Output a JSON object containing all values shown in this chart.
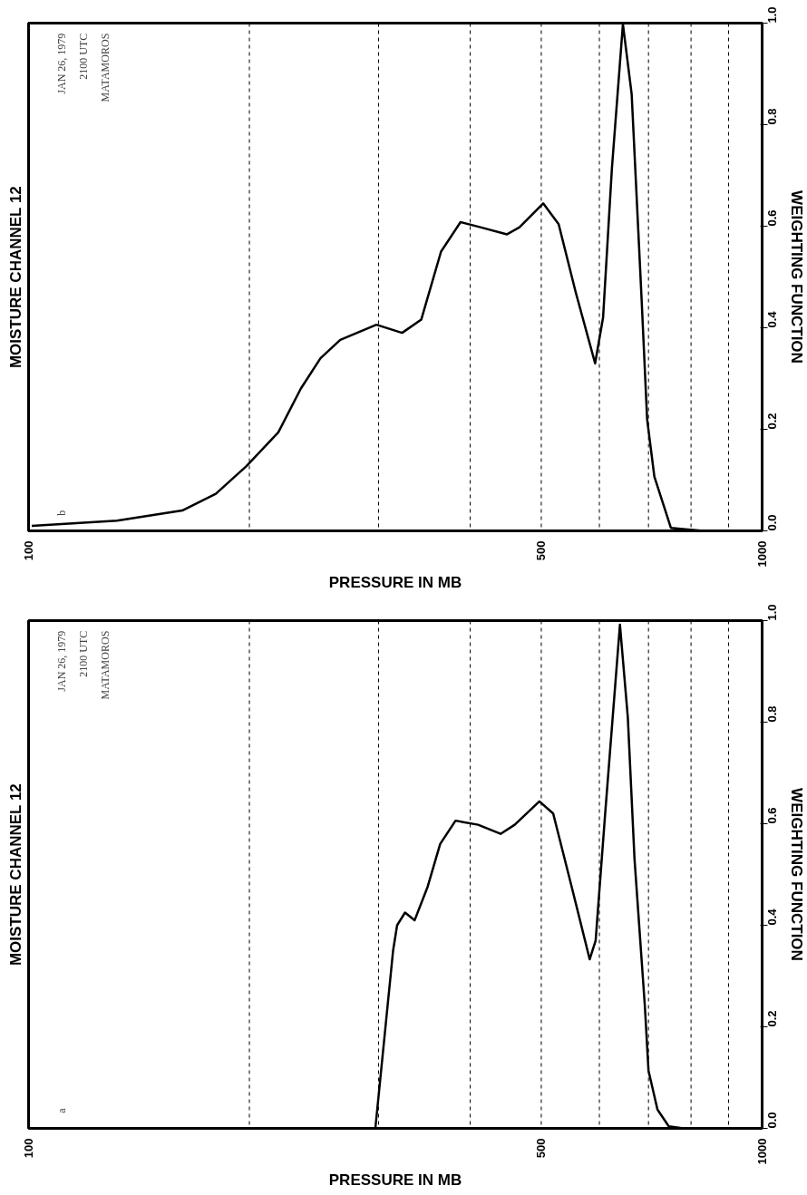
{
  "chart_data": [
    {
      "type": "line",
      "title": "MOISTURE CHANNEL 12",
      "xlabel": "PRESSURE IN MB",
      "ylabel": "WEIGHTING FUNCTION",
      "annotations": [
        "JAN 26, 1979",
        "2100 UTC",
        "MATAMOROS",
        "b"
      ],
      "log": "x",
      "xlim": [
        100,
        1000
      ],
      "xticks": [
        100,
        500,
        1000
      ],
      "ylim": [
        0,
        1
      ],
      "yticks": [
        {
          "value": 0,
          "label": "0.0"
        },
        {
          "value": 0.2,
          "label": "0.2"
        },
        {
          "value": 0.4,
          "label": "0.4"
        },
        {
          "value": 0.6,
          "label": "0.6"
        },
        {
          "value": 0.8,
          "label": "0.8"
        },
        {
          "value": 1,
          "label": "1.0"
        }
      ],
      "grid": false,
      "marker": "none",
      "line_style": "solid",
      "ref_lines": [
        {
          "axis": "x",
          "value": 200,
          "line_style": "dashed"
        },
        {
          "axis": "x",
          "value": 300,
          "line_style": "dashed"
        },
        {
          "axis": "x",
          "value": 400,
          "line_style": "dashed"
        },
        {
          "axis": "x",
          "value": 500,
          "line_style": "dashed"
        },
        {
          "axis": "x",
          "value": 600,
          "line_style": "dashed"
        },
        {
          "axis": "x",
          "value": 700,
          "line_style": "dashed"
        },
        {
          "axis": "x",
          "value": 800,
          "line_style": "dashed"
        },
        {
          "axis": "x",
          "value": 900,
          "line_style": "dashed"
        }
      ],
      "series": [
        {
          "color": "#000000",
          "x": [
            101,
            132,
            162,
            180,
            198,
            219,
            235,
            250,
            266,
            298,
            323,
            343,
            365,
            388,
            413,
            449,
            467,
            503,
            528,
            557,
            592,
            607,
            624,
            646,
            664,
            685,
            697,
            713,
            751,
            831,
            1000
          ],
          "values": [
            0.01,
            0.02,
            0.04,
            0.073,
            0.127,
            0.194,
            0.28,
            0.34,
            0.376,
            0.406,
            0.39,
            0.416,
            0.55,
            0.608,
            0.598,
            0.584,
            0.598,
            0.645,
            0.604,
            0.47,
            0.33,
            0.42,
            0.713,
            0.998,
            0.86,
            0.457,
            0.22,
            0.107,
            0.006,
            0,
            0
          ]
        }
      ]
    },
    {
      "type": "line",
      "title": "MOISTURE CHANNEL 12",
      "xlabel": "PRESSURE IN MB",
      "ylabel": "WEIGHTING FUNCTION",
      "annotations": [
        "JAN 26, 1979",
        "2100 UTC",
        "MATAMOROS",
        "a"
      ],
      "log": "x",
      "xlim": [
        100,
        1000
      ],
      "xticks": [
        100,
        500,
        1000
      ],
      "ylim": [
        0,
        1
      ],
      "yticks": [
        {
          "value": 0,
          "label": "0.0"
        },
        {
          "value": 0.2,
          "label": "0.2"
        },
        {
          "value": 0.4,
          "label": "0.4"
        },
        {
          "value": 0.6,
          "label": "0.6"
        },
        {
          "value": 0.8,
          "label": "0.8"
        },
        {
          "value": 1,
          "label": "1.0"
        }
      ],
      "grid": false,
      "marker": "none",
      "line_style": "solid",
      "ref_lines": [
        {
          "axis": "x",
          "value": 200,
          "line_style": "dashed"
        },
        {
          "axis": "x",
          "value": 300,
          "line_style": "dashed"
        },
        {
          "axis": "x",
          "value": 400,
          "line_style": "dashed"
        },
        {
          "axis": "x",
          "value": 500,
          "line_style": "dashed"
        },
        {
          "axis": "x",
          "value": 600,
          "line_style": "dashed"
        },
        {
          "axis": "x",
          "value": 700,
          "line_style": "dashed"
        },
        {
          "axis": "x",
          "value": 800,
          "line_style": "dashed"
        },
        {
          "axis": "x",
          "value": 900,
          "line_style": "dashed"
        }
      ],
      "series": [
        {
          "color": "#000000",
          "x": [
            100,
            297,
            314,
            318,
            326,
            336,
            350,
            364,
            382,
            410,
            440,
            460,
            497,
            519,
            550,
            582,
            593,
            611,
            640,
            656,
            670,
            692,
            700,
            720,
            746,
            781,
            1000
          ],
          "values": [
            0,
            0,
            0.35,
            0.4,
            0.425,
            0.41,
            0.476,
            0.56,
            0.606,
            0.598,
            0.58,
            0.598,
            0.644,
            0.62,
            0.476,
            0.333,
            0.37,
            0.62,
            0.992,
            0.81,
            0.53,
            0.242,
            0.114,
            0.037,
            0.004,
            0,
            0
          ]
        }
      ]
    }
  ]
}
